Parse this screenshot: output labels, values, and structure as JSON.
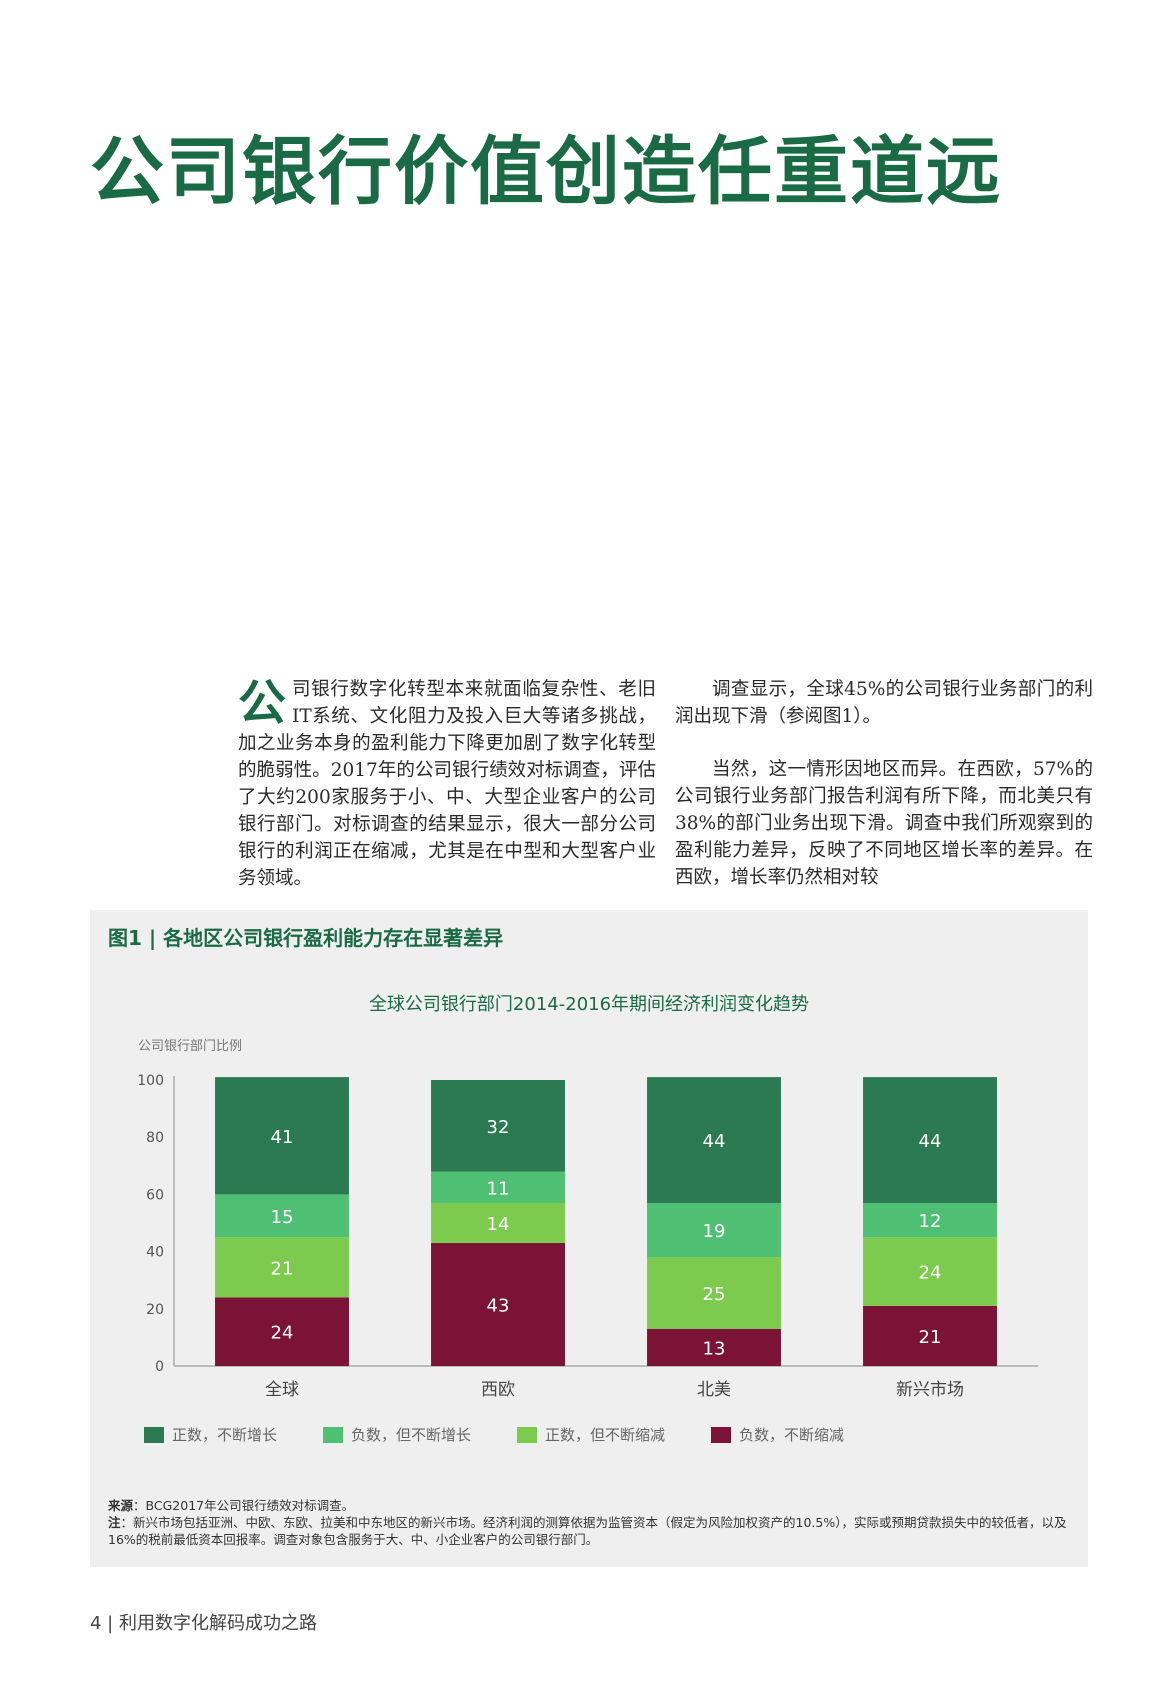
{
  "page": {
    "title": "公司银行价值创造任重道远",
    "col1": {
      "dropcap": "公",
      "text": "司银行数字化转型本来就面临复杂性、老旧IT系统、文化阻力及投入巨大等诸多挑战，加之业务本身的盈利能力下降更加剧了数字化转型的脆弱性。2017年的公司银行绩效对标调查，评估了大约200家服务于小、中、大型企业客户的公司银行部门。对标调查的结果显示，很大一部分公司银行的利润正在缩减，尤其是在中型和大型客户业务领域。"
    },
    "col2": {
      "p1": "调查显示，全球45%的公司银行业务部门的利润出现下滑（参阅图1）。",
      "p2": "当然，这一情形因地区而异。在西欧，57%的公司银行业务部门报告利润有所下降，而北美只有38%的部门业务出现下滑。调查中我们所观察到的盈利能力差异，反映了不同地区增长率的差异。在西欧，增长率仍然相对较"
    },
    "figure": {
      "label": "图1 | 各地区公司银行盈利能力存在显著差异"
    },
    "notes": {
      "source_label": "来源",
      "source_text": "：BCG2017年公司银行绩效对标调查。",
      "note_label": "注",
      "note_text": "：新兴市场包括亚洲、中欧、东欧、拉美和中东地区的新兴市场。经济利润的测算依据为监管资本（假定为风险加权资产的10.5%），实际或预期贷款损失中的较低者，以及16%的税前最低资本回报率。调查对象包含服务于大、中、小企业客户的公司银行部门。"
    },
    "footer": "4 | 利用数字化解码成功之路"
  },
  "chart_data": {
    "type": "bar",
    "stacked": true,
    "title": "全球公司银行部门2014-2016年期间经济利润变化趋势",
    "ylabel": "公司银行部门比例",
    "xlabel": "",
    "ylim": [
      0,
      100
    ],
    "yticks": [
      0,
      20,
      40,
      60,
      80,
      100
    ],
    "categories": [
      "全球",
      "西欧",
      "北美",
      "新兴市场"
    ],
    "series": [
      {
        "name": "负数，不断缩减",
        "color": "#7b1336",
        "values": [
          24,
          43,
          13,
          21
        ]
      },
      {
        "name": "正数，但不断缩减",
        "color": "#7dcb4e",
        "values": [
          21,
          14,
          25,
          24
        ]
      },
      {
        "name": "负数，但不断增长",
        "color": "#4fbf74",
        "values": [
          15,
          11,
          19,
          12
        ]
      },
      {
        "name": "正数，不断增长",
        "color": "#2b7a52",
        "values": [
          41,
          32,
          44,
          44
        ]
      }
    ],
    "legend_order": [
      "正数，不断增长",
      "负数，但不断增长",
      "正数，但不断缩减",
      "负数，不断缩减"
    ],
    "legend": "bottom",
    "grid": false
  }
}
